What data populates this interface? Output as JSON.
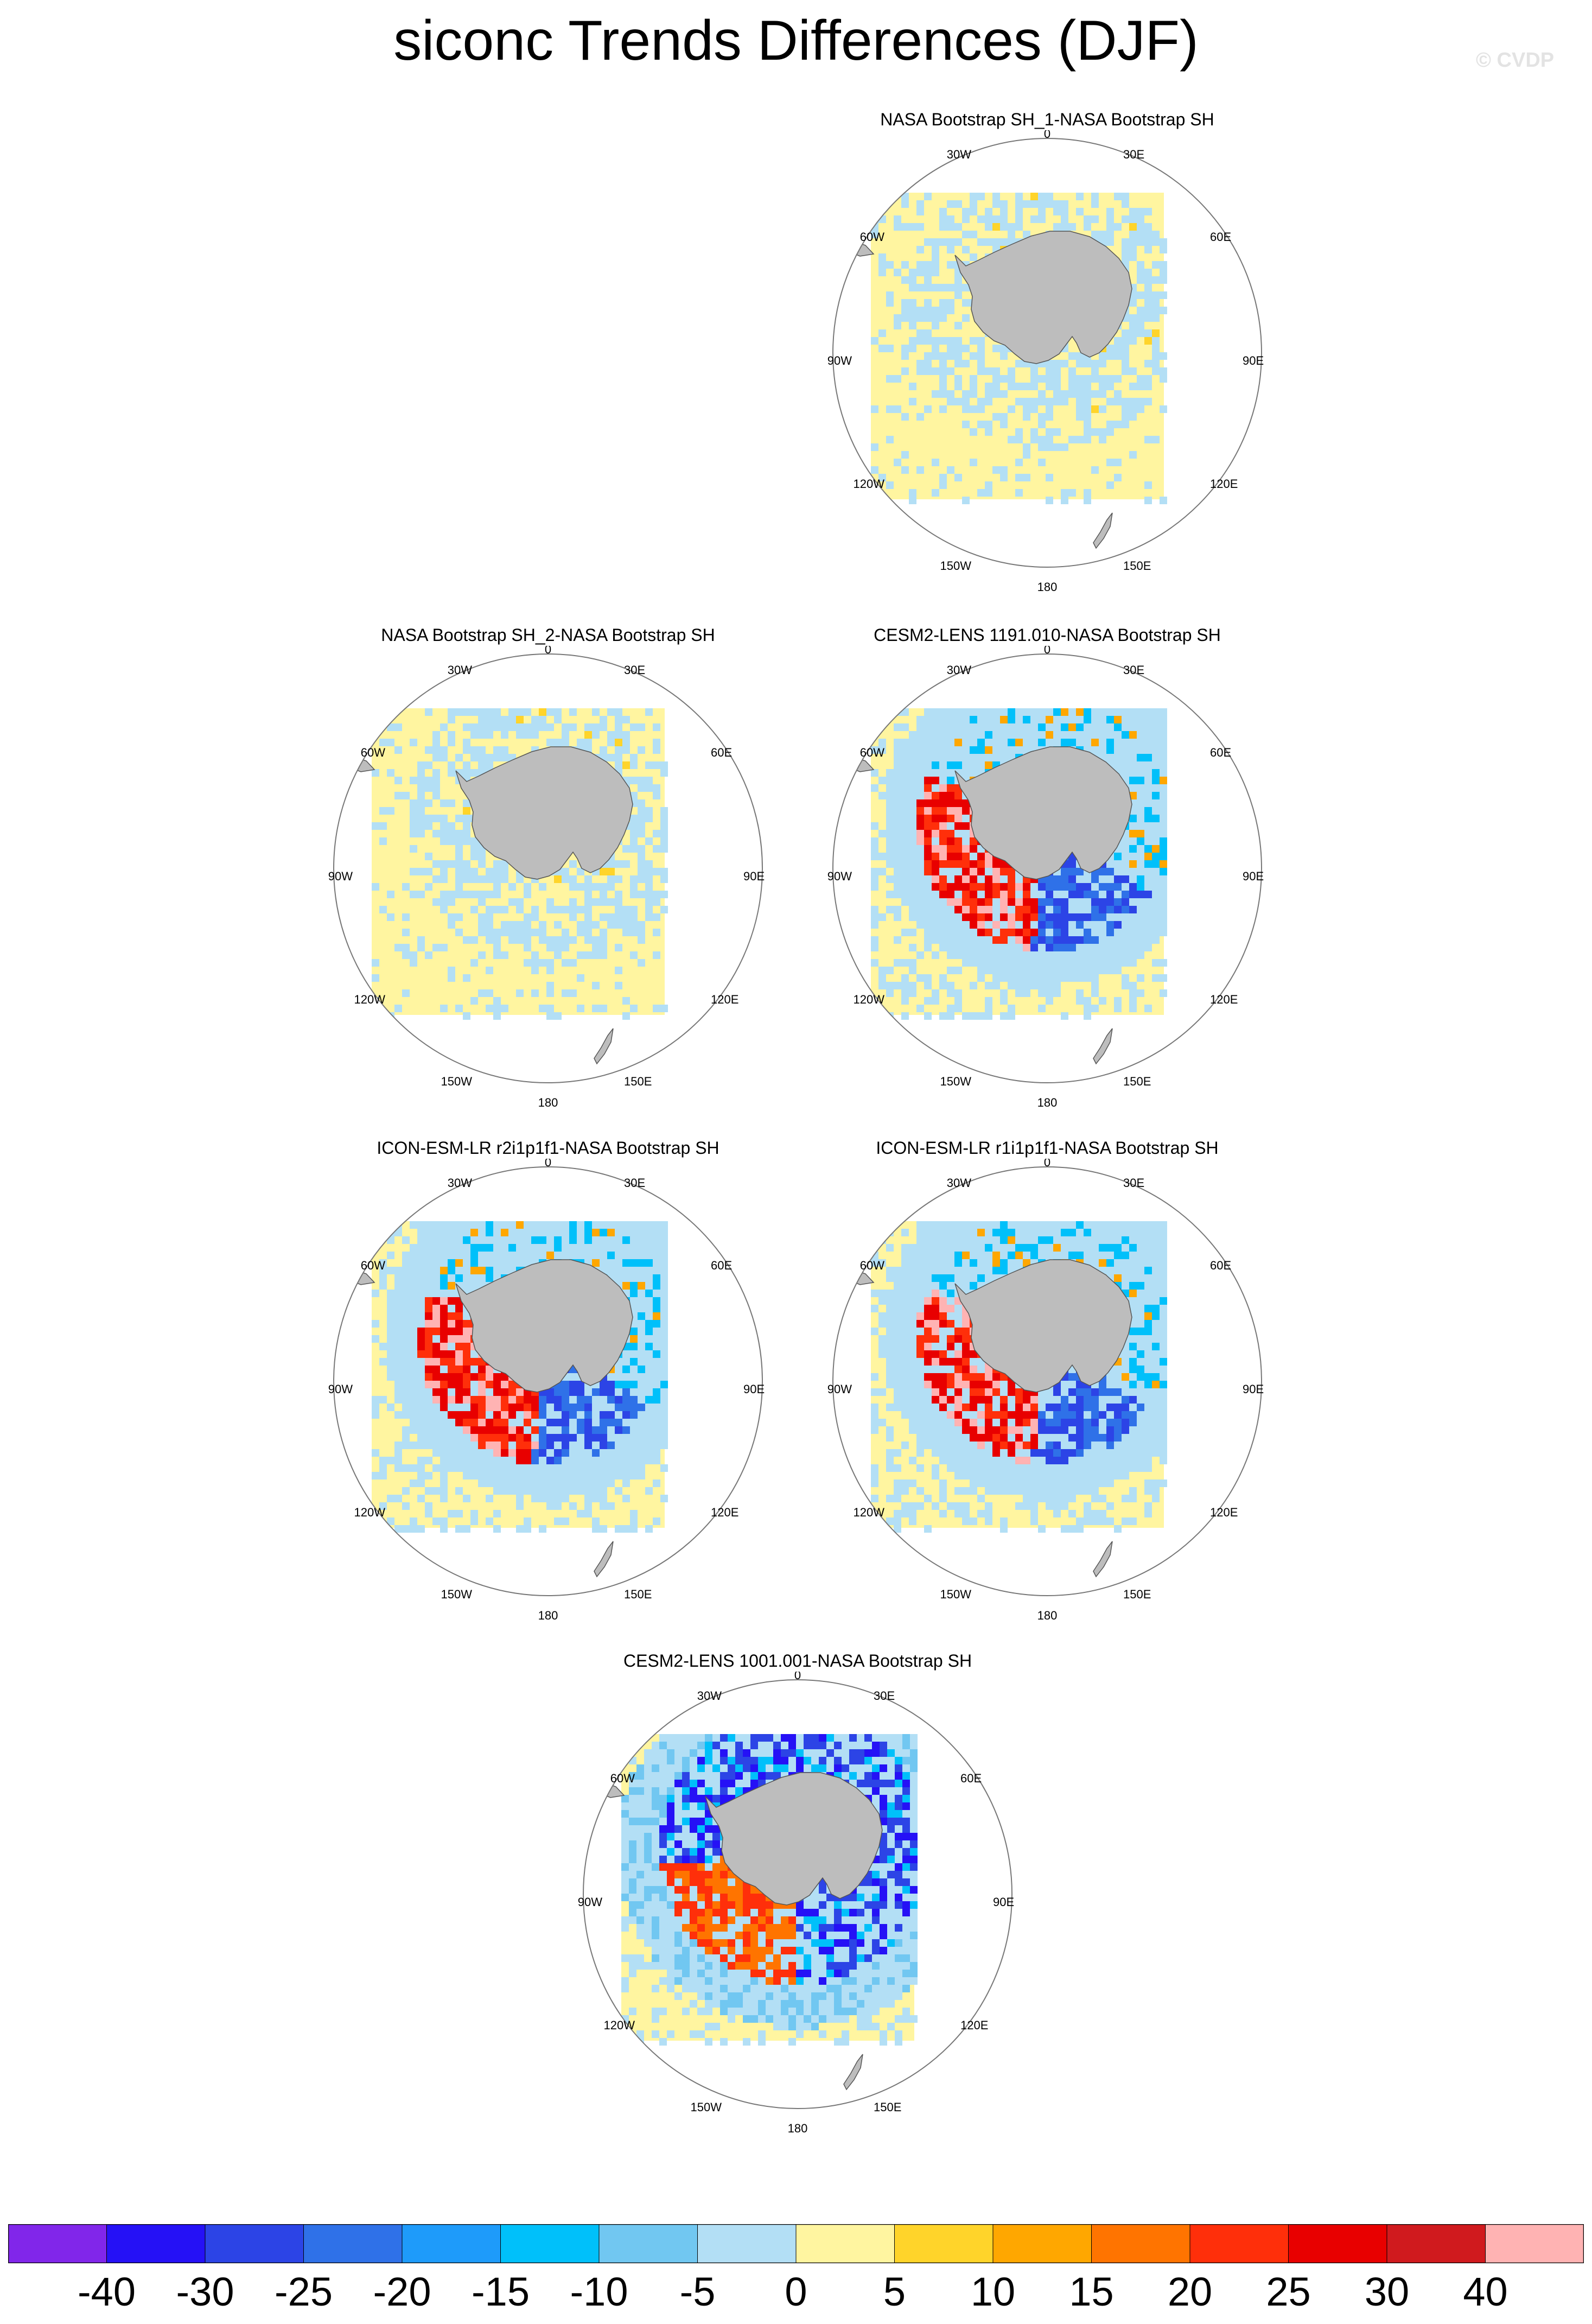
{
  "title": "siconc Trends Differences (DJF)",
  "watermark": "© CVDP",
  "panels": [
    {
      "title": "NASA Bootstrap SH_1-NASA Bootstrap SH",
      "pattern": "noise-light"
    },
    {
      "title": "NASA Bootstrap SH_2-NASA Bootstrap SH",
      "pattern": "noise-light"
    },
    {
      "title": "CESM2-LENS 1191.010-NASA Bootstrap SH",
      "pattern": "strong-west-positive"
    },
    {
      "title": "ICON-ESM-LR r2i1p1f1-NASA Bootstrap SH",
      "pattern": "strong-west-positive"
    },
    {
      "title": "ICON-ESM-LR r1i1p1f1-NASA Bootstrap SH",
      "pattern": "strong-west-positive"
    },
    {
      "title": "CESM2-LENS 1001.001-NASA Bootstrap SH",
      "pattern": "strong-ring-negative"
    }
  ],
  "map_labels": {
    "top": "0",
    "bottom": "180",
    "upper_left": "30W",
    "upper_right": "30E",
    "left_upper": "60W",
    "right_upper": "60E",
    "left": "90W",
    "right": "90E",
    "left_lower": "120W",
    "right_lower": "120E",
    "lower_left": "150W",
    "lower_right": "150E"
  },
  "colors": {
    "land": "#bdbdbd",
    "background_zero": "#fff5a0",
    "weak_negative": "#b3dff5",
    "weak_positive": "#ffd42a"
  },
  "colorbar": {
    "colors": [
      "#8126ea",
      "#2511f6",
      "#2c44e6",
      "#2f71e8",
      "#1e9bfa",
      "#00c0fa",
      "#71c7f1",
      "#b3dff5",
      "#fff5a0",
      "#ffd42a",
      "#ffa700",
      "#ff7400",
      "#ff2f0a",
      "#e80000",
      "#d01a1e",
      "#ffb3b3"
    ],
    "labels": [
      "-40",
      "-30",
      "-25",
      "-20",
      "-15",
      "-10",
      "-5",
      "0",
      "5",
      "10",
      "15",
      "20",
      "25",
      "30",
      "40"
    ]
  }
}
